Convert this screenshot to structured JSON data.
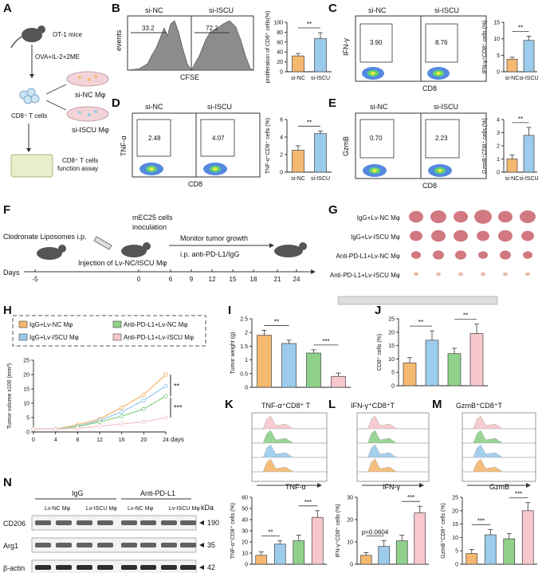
{
  "panels": {
    "A": {
      "label": "A",
      "mouse": "OT-1 mice",
      "treatment": "OVA+IL-2+2ME",
      "cells": "CD8⁺ T cells",
      "dish1": "si-NC Mφ",
      "dish2": "si-ISCU Mφ",
      "assay": "CD8⁺ T cells function assay"
    },
    "B": {
      "label": "B",
      "t1": "si-NC",
      "t2": "si-ISCU",
      "ylab": "events",
      "xlab": "CFSE",
      "g1": "33.2",
      "g2": "72.2"
    },
    "C": {
      "label": "C",
      "t1": "si-NC",
      "t2": "si-ISCU",
      "ylab": "IFN-γ",
      "xlab": "CD8",
      "g1": "3.90",
      "g2": "8.76"
    },
    "D": {
      "label": "D",
      "t1": "si-NC",
      "t2": "si-ISCU",
      "ylab": "TNF-α",
      "xlab": "CD8",
      "g1": "2.48",
      "g2": "4.07"
    },
    "E": {
      "label": "E",
      "t1": "si-NC",
      "t2": "si-ISCU",
      "ylab": "GzmB",
      "xlab": "CD8",
      "g1": "0.70",
      "g2": "2.23"
    },
    "F": {
      "label": "F",
      "clod": "Clodronate Liposomes i.p.",
      "mec": "mEC25 cells",
      "inoc": "inoculation",
      "monitor": "Monitor tumor growth",
      "ip": "i.p. anti-PD-L1/IgG",
      "inj": "Injection of Lv-NC/ISCU Mφ",
      "days_label": "Days",
      "days": [
        "-5",
        "0",
        "6",
        "9",
        "12",
        "15",
        "18",
        "21",
        "24"
      ]
    },
    "G": {
      "label": "G",
      "rows": [
        "IgG+Lv-NC Mφ",
        "IgG+Lv-ISCU Mφ",
        "Anti-PD-L1+Lv-NC Mφ",
        "Anti-PD-L1+Lv-ISCU Mφ"
      ]
    },
    "H": {
      "label": "H",
      "legend": [
        "IgG+Lv-NC Mφ",
        "IgG+Lv-ISCU Mφ",
        "Anti-PD-L1+Lv-NC Mφ",
        "Anti-PD-L1+Lv-ISCU Mφ"
      ],
      "sig1": "**",
      "sig2": "***"
    },
    "I": {
      "label": "I",
      "sig1": "**",
      "sig2": "***"
    },
    "J": {
      "label": "J",
      "sig1": "**",
      "sig2": "**"
    },
    "K": {
      "label": "K",
      "title": "TNF-α⁺CD8⁺ T",
      "xlab": "TNF-α",
      "sig1": "**",
      "sig2": "***"
    },
    "L": {
      "label": "L",
      "title": "IFN-γ⁺CD8⁺T",
      "xlab": "IFN-γ",
      "sig1": "p=0.0604",
      "sig2": "***"
    },
    "M": {
      "label": "M",
      "title": "GzmB⁺CD8⁺T",
      "xlab": "GzmB",
      "sig1": "***",
      "sig2": "***"
    },
    "N": {
      "label": "N",
      "grp1": "IgG",
      "grp2": "Anti-PD-L1",
      "lanes": [
        "Lv-NC Mφ",
        "Lv-ISCU Mφ",
        "Lv-NC Mφ",
        "Lv-ISCU Mφ"
      ],
      "kda": "kDa",
      "bands": [
        {
          "name": "CD206",
          "kda": "190"
        },
        {
          "name": "Arg1",
          "kda": "35"
        },
        {
          "name": "β-actin",
          "kda": "42"
        }
      ]
    }
  },
  "colors": {
    "nc": "#f5b870",
    "iscu": "#9ccbec",
    "pdl1_nc": "#8fd18a",
    "pdl1_iscu": "#f6c7cc"
  },
  "chart_data": [
    {
      "id": "B_bar",
      "type": "bar",
      "categories": [
        "si-NC",
        "si-ISCU"
      ],
      "values": [
        32,
        67
      ],
      "errors": [
        5,
        12
      ],
      "ylabel": "proliferation of CD8⁺ cells(%)",
      "ylim": [
        0,
        100
      ],
      "yticks": [
        0,
        20,
        40,
        60,
        80,
        100
      ],
      "sig": "**"
    },
    {
      "id": "C_bar",
      "type": "bar",
      "categories": [
        "si-NC",
        "si-ISCU"
      ],
      "values": [
        3.8,
        9.5
      ],
      "errors": [
        0.6,
        1.3
      ],
      "ylabel": "IFN-γ⁺CD8⁺ cells (%)",
      "ylim": [
        0,
        15
      ],
      "yticks": [
        0,
        5,
        10,
        15
      ],
      "sig": "**"
    },
    {
      "id": "D_bar",
      "type": "bar",
      "categories": [
        "si-NC",
        "si-ISCU"
      ],
      "values": [
        2.5,
        4.4
      ],
      "errors": [
        0.5,
        0.3
      ],
      "ylabel": "TNF-α⁺CD8⁺ cells (%)",
      "ylim": [
        0,
        6
      ],
      "yticks": [
        0,
        2,
        4,
        6
      ],
      "sig": "**"
    },
    {
      "id": "E_bar",
      "type": "bar",
      "categories": [
        "si-NC",
        "si-ISCU"
      ],
      "values": [
        1.0,
        2.8
      ],
      "errors": [
        0.3,
        0.6
      ],
      "ylabel": "GzmB⁺CD8⁺ cells (%)",
      "ylim": [
        0,
        4
      ],
      "yticks": [
        0,
        1,
        2,
        3,
        4
      ],
      "sig": "**"
    },
    {
      "id": "H_line",
      "type": "line",
      "x": [
        0,
        4,
        8,
        12,
        16,
        20,
        24
      ],
      "xlabel": "days",
      "ylabel": "Tumor volume x100 (mm³)",
      "ylim": [
        0,
        25
      ],
      "yticks": [
        0,
        5,
        10,
        15,
        20,
        25
      ],
      "series": [
        {
          "name": "IgG+Lv-NC Mφ",
          "values": [
            1,
            1,
            2.5,
            4.5,
            8.5,
            13,
            20
          ]
        },
        {
          "name": "IgG+Lv-ISCU Mφ",
          "values": [
            1,
            1,
            2,
            4,
            7,
            11,
            16
          ]
        },
        {
          "name": "Anti-PD-L1+Lv-NC Mφ",
          "values": [
            1,
            1,
            1.8,
            3.5,
            5.5,
            8,
            12.5
          ]
        },
        {
          "name": "Anti-PD-L1+Lv-ISCU Mφ",
          "values": [
            1,
            1,
            1.2,
            2,
            2.8,
            3.5,
            5
          ]
        }
      ]
    },
    {
      "id": "I_bar",
      "type": "bar",
      "categories": [
        "IgG+Lv-NC",
        "IgG+Lv-ISCU",
        "Anti-PD-L1+Lv-NC",
        "Anti-PD-L1+Lv-ISCU"
      ],
      "values": [
        1.9,
        1.6,
        1.25,
        0.4
      ],
      "errors": [
        0.18,
        0.12,
        0.12,
        0.12
      ],
      "ylabel": "Tumor weight (g)",
      "ylim": [
        0,
        2.5
      ],
      "yticks": [
        0,
        0.5,
        1.0,
        1.5,
        2.0,
        2.5
      ]
    },
    {
      "id": "J_bar",
      "type": "bar",
      "categories": [
        "IgG+Lv-NC",
        "IgG+Lv-ISCU",
        "Anti-PD-L1+Lv-NC",
        "Anti-PD-L1+Lv-ISCU"
      ],
      "values": [
        8.5,
        17,
        12,
        19.5
      ],
      "errors": [
        2,
        3.5,
        2,
        3.5
      ],
      "ylabel": "CD8⁺ cells (%)",
      "ylim": [
        0,
        25
      ],
      "yticks": [
        0,
        5,
        10,
        15,
        20,
        25
      ]
    },
    {
      "id": "K_bar",
      "type": "bar",
      "categories": [
        "IgG+Lv-NC",
        "IgG+Lv-ISCU",
        "Anti-PD-L1+Lv-NC",
        "Anti-PD-L1+Lv-ISCU"
      ],
      "values": [
        8,
        18,
        21,
        42
      ],
      "errors": [
        3,
        3,
        5,
        6
      ],
      "ylabel": "TNF-α⁺CD8⁺ cells (%)",
      "ylim": [
        0,
        60
      ],
      "yticks": [
        0,
        10,
        20,
        30,
        40,
        50,
        60
      ]
    },
    {
      "id": "L_bar",
      "type": "bar",
      "categories": [
        "IgG+Lv-NC",
        "IgG+Lv-ISCU",
        "Anti-PD-L1+Lv-NC",
        "Anti-PD-L1+Lv-ISCU"
      ],
      "values": [
        4,
        8,
        10.5,
        23
      ],
      "errors": [
        1.2,
        2.5,
        2.5,
        3
      ],
      "ylabel": "IFN-γ⁺CD8⁺ cells (%)",
      "ylim": [
        0,
        30
      ],
      "yticks": [
        0,
        10,
        20,
        30
      ]
    },
    {
      "id": "M_bar",
      "type": "bar",
      "categories": [
        "IgG+Lv-NC",
        "IgG+Lv-ISCU",
        "Anti-PD-L1+Lv-NC",
        "Anti-PD-L1+Lv-ISCU"
      ],
      "values": [
        4,
        11,
        9.5,
        20
      ],
      "errors": [
        1.5,
        2,
        2,
        3
      ],
      "ylabel": "GzmB⁺CD8⁺ cells (%)",
      "ylim": [
        0,
        25
      ],
      "yticks": [
        0,
        5,
        10,
        15,
        20,
        25
      ]
    }
  ]
}
